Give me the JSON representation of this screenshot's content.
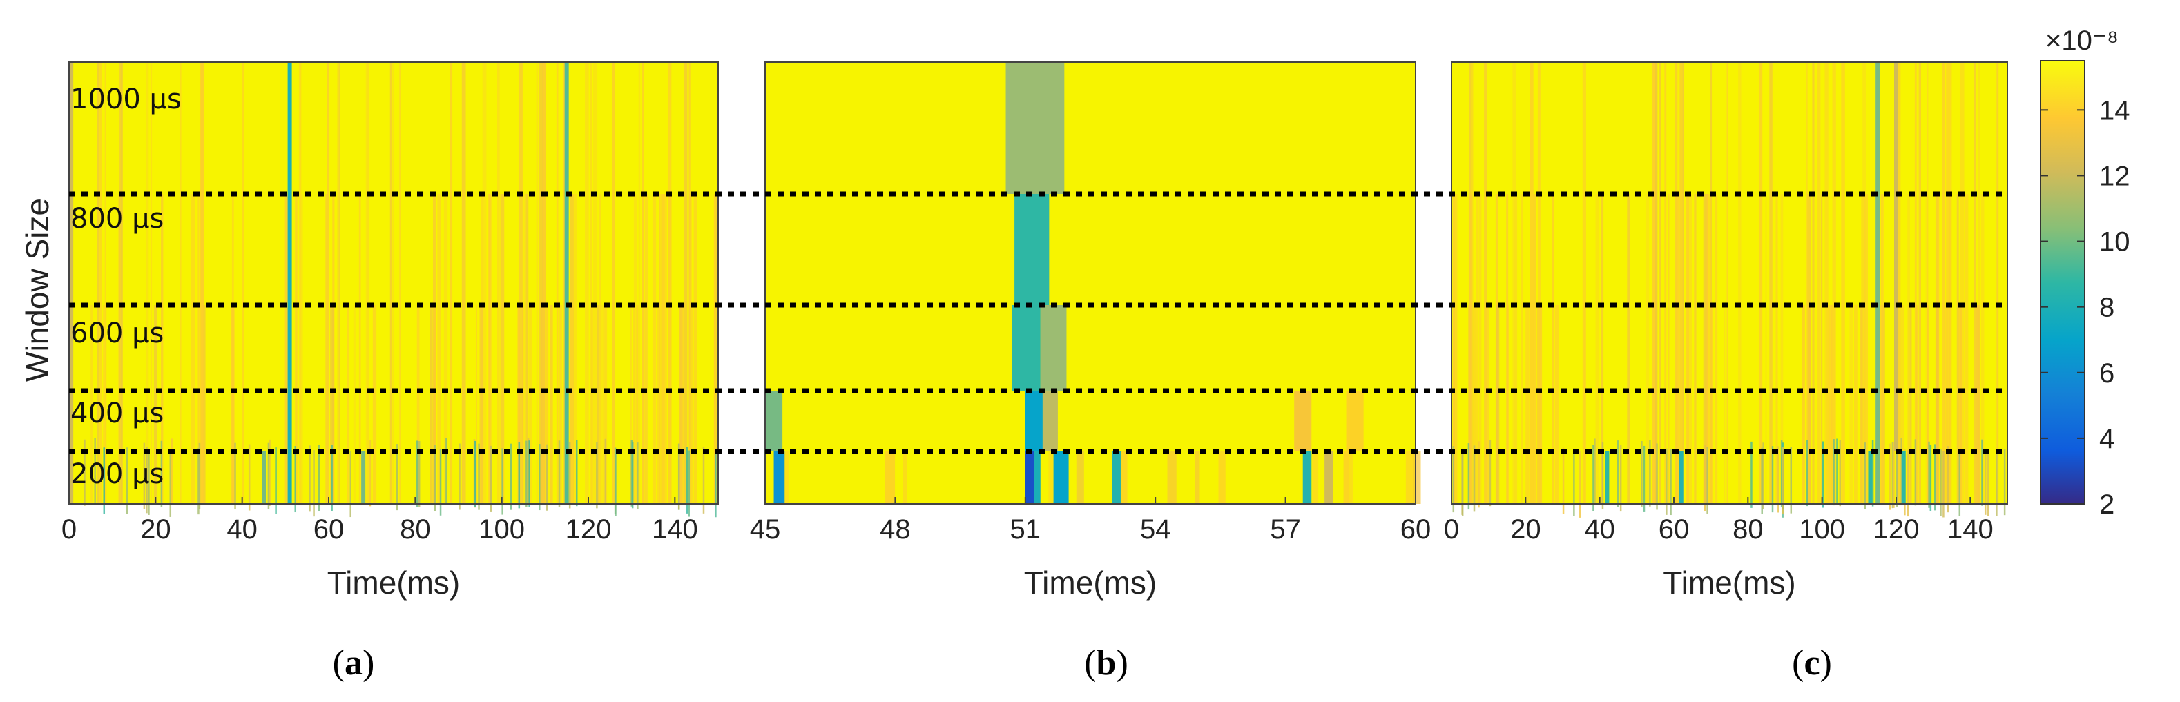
{
  "y_axis_label": "Window Size",
  "window_size_labels": [
    "1000 μs",
    "800 μs",
    "600 μs",
    "400 μs",
    "200 μs"
  ],
  "colorbar": {
    "exponent_label": "×10⁻⁸",
    "ticks": [
      2,
      4,
      6,
      8,
      10,
      12,
      14
    ],
    "range": [
      2,
      15.5
    ]
  },
  "panel_labels": {
    "a_prefix": "(",
    "a_letter": "a",
    "a_suffix": ")",
    "b_prefix": "(",
    "b_letter": "b",
    "b_suffix": ")",
    "c_prefix": "(",
    "c_letter": "c",
    "c_suffix": ")"
  },
  "colors": {
    "background_high": "#f7f400",
    "orange": "#f5b93e",
    "gray_green": "#9cbc72",
    "green": "#27c08a",
    "teal": "#17b4b4",
    "blue": "#1d6ee6",
    "separator": "#000000"
  },
  "chart_data": [
    {
      "type": "heatmap",
      "panel": "a",
      "xlabel": "Time(ms)",
      "ylabel": "Window Size",
      "xlim": [
        0,
        150
      ],
      "xticks": [
        0,
        20,
        40,
        60,
        80,
        100,
        120,
        140
      ],
      "rows": [
        "1000 μs",
        "800 μs",
        "600 μs",
        "400 μs",
        "200 μs"
      ],
      "baseline_value": 15.5,
      "features": [
        {
          "t": 51,
          "value": 9,
          "rows": [
            0,
            1,
            2,
            3,
            4
          ]
        },
        {
          "t": 115,
          "value": 10.5,
          "rows": [
            0,
            1,
            2,
            3,
            4
          ]
        },
        {
          "t": 0.5,
          "value": 13,
          "rows": [
            0,
            1,
            2,
            3,
            4
          ]
        },
        {
          "t": 45,
          "value": 11,
          "rows": [
            4
          ]
        },
        {
          "t": 68,
          "value": 11,
          "rows": [
            4
          ]
        }
      ]
    },
    {
      "type": "heatmap",
      "panel": "b",
      "xlabel": "Time(ms)",
      "ylabel": "Window Size",
      "xlim": [
        45,
        60
      ],
      "xticks": [
        45,
        48,
        51,
        54,
        57,
        60
      ],
      "rows": [
        "1000 μs",
        "800 μs",
        "600 μs",
        "400 μs",
        "200 μs"
      ],
      "baseline_value": 15.5,
      "features": [
        {
          "t0": 50.55,
          "t1": 51.9,
          "value": 11.5,
          "rows": [
            0
          ]
        },
        {
          "t0": 50.75,
          "t1": 51.55,
          "value": 10,
          "rows": [
            1
          ]
        },
        {
          "t0": 50.7,
          "t1": 51.35,
          "value": 10,
          "rows": [
            2
          ]
        },
        {
          "t0": 51.35,
          "t1": 51.95,
          "value": 11.5,
          "rows": [
            2
          ]
        },
        {
          "t0": 45.0,
          "t1": 45.4,
          "value": 11,
          "rows": [
            3
          ]
        },
        {
          "t0": 51.0,
          "t1": 51.4,
          "value": 8,
          "rows": [
            3
          ]
        },
        {
          "t0": 51.4,
          "t1": 51.75,
          "value": 12.5,
          "rows": [
            3
          ]
        },
        {
          "t0": 57.2,
          "t1": 57.6,
          "value": 14,
          "rows": [
            3
          ]
        },
        {
          "t0": 58.4,
          "t1": 58.8,
          "value": 14.5,
          "rows": [
            3
          ]
        },
        {
          "t0": 45.2,
          "t1": 45.45,
          "value": 7,
          "rows": [
            4
          ]
        },
        {
          "t0": 51.0,
          "t1": 51.2,
          "value": 3.5,
          "rows": [
            4
          ]
        },
        {
          "t0": 51.2,
          "t1": 51.35,
          "value": 9,
          "rows": [
            4
          ]
        },
        {
          "t0": 51.65,
          "t1": 52.0,
          "value": 8,
          "rows": [
            4
          ]
        },
        {
          "t0": 53.0,
          "t1": 53.2,
          "value": 9.5,
          "rows": [
            4
          ]
        },
        {
          "t0": 57.4,
          "t1": 57.6,
          "value": 9.5,
          "rows": [
            4
          ]
        },
        {
          "t0": 57.9,
          "t1": 58.1,
          "value": 13,
          "rows": [
            4
          ]
        }
      ]
    },
    {
      "type": "heatmap",
      "panel": "c",
      "xlabel": "Time(ms)",
      "ylabel": "",
      "xlim": [
        0,
        150
      ],
      "xticks": [
        0,
        20,
        40,
        60,
        80,
        100,
        120,
        140
      ],
      "rows": [
        "1000 μs",
        "800 μs",
        "600 μs",
        "400 μs",
        "200 μs"
      ],
      "baseline_value": 15.5,
      "features": [
        {
          "t": 115,
          "value": 11,
          "rows": [
            0,
            1,
            2,
            3,
            4
          ]
        },
        {
          "t": 120,
          "value": 13,
          "rows": [
            0,
            1,
            2,
            3
          ]
        },
        {
          "t": 42,
          "value": 10,
          "rows": [
            4
          ]
        },
        {
          "t": 62,
          "value": 9.5,
          "rows": [
            4
          ]
        },
        {
          "t": 113,
          "value": 10,
          "rows": [
            4
          ]
        },
        {
          "t": 122,
          "value": 10,
          "rows": [
            4
          ]
        }
      ]
    }
  ]
}
